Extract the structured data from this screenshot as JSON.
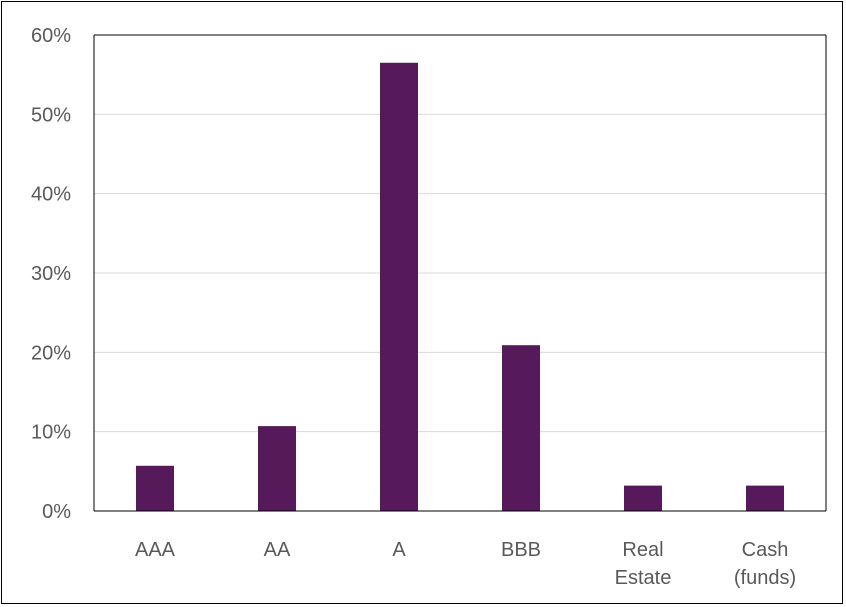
{
  "chart_data": {
    "type": "bar",
    "categories": [
      [
        "AAA"
      ],
      [
        "AA"
      ],
      [
        "A"
      ],
      [
        "BBB"
      ],
      [
        "Real",
        "Estate"
      ],
      [
        "Cash",
        "(funds)"
      ]
    ],
    "values": [
      5.7,
      10.7,
      56.5,
      20.9,
      3.2,
      3.2
    ],
    "unit": "%",
    "ylim": [
      0,
      60
    ],
    "yticks": [
      "0%",
      "10%",
      "20%",
      "30%",
      "40%",
      "50%",
      "60%"
    ],
    "grid": true,
    "legend": "none",
    "title": "",
    "xlabel": "",
    "ylabel": "",
    "bar_color": "#561A5A",
    "grid_color": "#D9D9D9",
    "axis_color": "#000000"
  }
}
